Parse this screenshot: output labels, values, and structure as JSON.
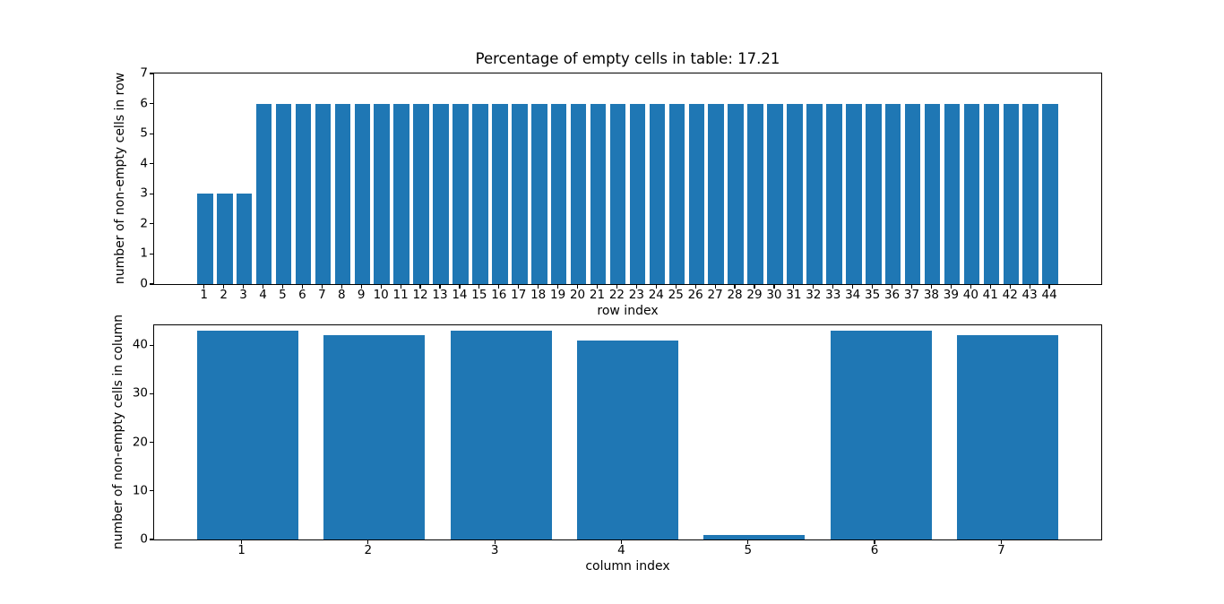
{
  "figure": {
    "background": "#ffffff",
    "spine_color": "#000000",
    "text_color": "#000000"
  },
  "chart_data": [
    {
      "type": "bar",
      "title": "Percentage of empty cells in table: 17.21",
      "xlabel": "row index",
      "ylabel": "number of non-empty cells in row",
      "categories": [
        "1",
        "2",
        "3",
        "4",
        "5",
        "6",
        "7",
        "8",
        "9",
        "10",
        "11",
        "12",
        "13",
        "14",
        "15",
        "16",
        "17",
        "18",
        "19",
        "20",
        "21",
        "22",
        "23",
        "24",
        "25",
        "26",
        "27",
        "28",
        "29",
        "30",
        "31",
        "32",
        "33",
        "34",
        "35",
        "36",
        "37",
        "38",
        "39",
        "40",
        "41",
        "42",
        "43",
        "44"
      ],
      "values": [
        3,
        3,
        3,
        6,
        6,
        6,
        6,
        6,
        6,
        6,
        6,
        6,
        6,
        6,
        6,
        6,
        6,
        6,
        6,
        6,
        6,
        6,
        6,
        6,
        6,
        6,
        6,
        6,
        6,
        6,
        6,
        6,
        6,
        6,
        6,
        6,
        6,
        6,
        6,
        6,
        6,
        6,
        6,
        6
      ],
      "bar_color": "#1f77b4",
      "bar_width": 0.8,
      "tick_x_offset": -0.05,
      "xlim": [
        -1.59,
        46.59
      ],
      "ylim": [
        0,
        7
      ],
      "yticks": [
        0,
        1,
        2,
        3,
        4,
        5,
        6,
        7
      ],
      "grid": false,
      "legend": null
    },
    {
      "type": "bar",
      "title": "",
      "xlabel": "column index",
      "ylabel": "number of non-empty cells in column",
      "categories": [
        "1",
        "2",
        "3",
        "4",
        "5",
        "6",
        "7"
      ],
      "values": [
        43,
        42,
        43,
        41,
        1,
        43,
        42
      ],
      "bar_color": "#1f77b4",
      "bar_width": 0.8,
      "tick_x_offset": -0.05,
      "xlim": [
        0.26,
        7.74
      ],
      "ylim": [
        0,
        44.1
      ],
      "yticks": [
        0,
        10,
        20,
        30,
        40
      ],
      "grid": false,
      "legend": null
    }
  ]
}
